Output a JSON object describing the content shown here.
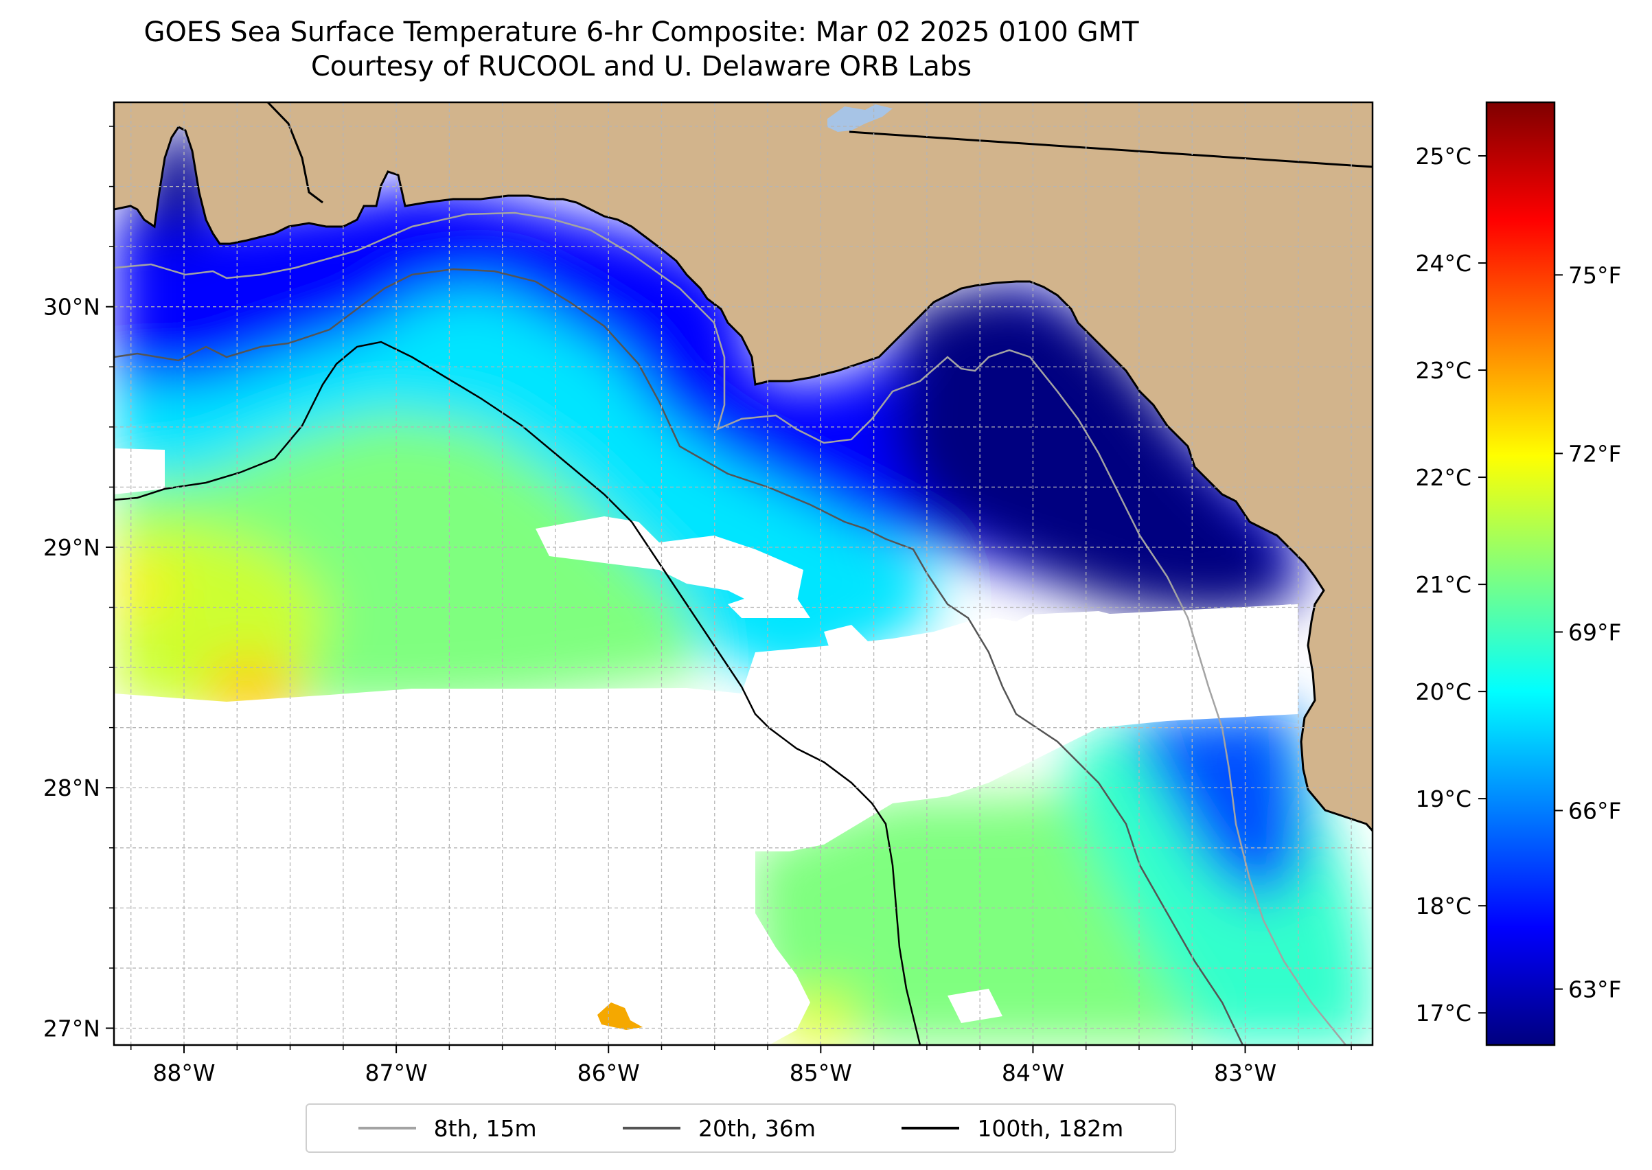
{
  "title": {
    "line1": "GOES Sea Surface Temperature 6-hr Composite: Mar 02 2025 0100 GMT",
    "line2": "Courtesy of RUCOOL and U. Delaware ORB Labs"
  },
  "map": {
    "lon_range": [
      -88.33,
      -82.4
    ],
    "lat_range": [
      26.93,
      30.85
    ],
    "lon_ticks": [
      {
        "value": -88,
        "label": "88°W"
      },
      {
        "value": -87,
        "label": "87°W"
      },
      {
        "value": -86,
        "label": "86°W"
      },
      {
        "value": -85,
        "label": "85°W"
      },
      {
        "value": -84,
        "label": "84°W"
      },
      {
        "value": -83,
        "label": "83°W"
      }
    ],
    "lat_ticks": [
      {
        "value": 30,
        "label": "30°N"
      },
      {
        "value": 29,
        "label": "29°N"
      },
      {
        "value": 28,
        "label": "28°N"
      },
      {
        "value": 27,
        "label": "27°N"
      }
    ],
    "grid": true,
    "colors": {
      "land": "#d2b48c",
      "no_data": "#ffffff",
      "lake": "#a7c4e6",
      "isobath_15m": "#a3a3a3",
      "isobath_36m": "#545454",
      "isobath_182m": "#000000"
    }
  },
  "colorbar": {
    "celsius_range": [
      16.7,
      25.5
    ],
    "celsius_ticks": [
      {
        "value": 17,
        "label": "17°C"
      },
      {
        "value": 18,
        "label": "18°C"
      },
      {
        "value": 19,
        "label": "19°C"
      },
      {
        "value": 20,
        "label": "20°C"
      },
      {
        "value": 21,
        "label": "21°C"
      },
      {
        "value": 22,
        "label": "22°C"
      },
      {
        "value": 23,
        "label": "23°C"
      },
      {
        "value": 24,
        "label": "24°C"
      },
      {
        "value": 25,
        "label": "25°C"
      }
    ],
    "fahrenheit_ticks": [
      {
        "value": 63,
        "label": "63°F"
      },
      {
        "value": 66,
        "label": "66°F"
      },
      {
        "value": 69,
        "label": "69°F"
      },
      {
        "value": 72,
        "label": "72°F"
      },
      {
        "value": 75,
        "label": "75°F"
      }
    ],
    "colormap": [
      "#00007f",
      "#0000ff",
      "#007fff",
      "#00ffff",
      "#7fff7f",
      "#ffff00",
      "#ff7f00",
      "#ff0000",
      "#7f0000"
    ]
  },
  "legend": {
    "entries": [
      {
        "label": "8th, 15m",
        "color": "#a3a3a3"
      },
      {
        "label": "20th, 36m",
        "color": "#545454"
      },
      {
        "label": "100th, 182m",
        "color": "#000000"
      }
    ]
  }
}
